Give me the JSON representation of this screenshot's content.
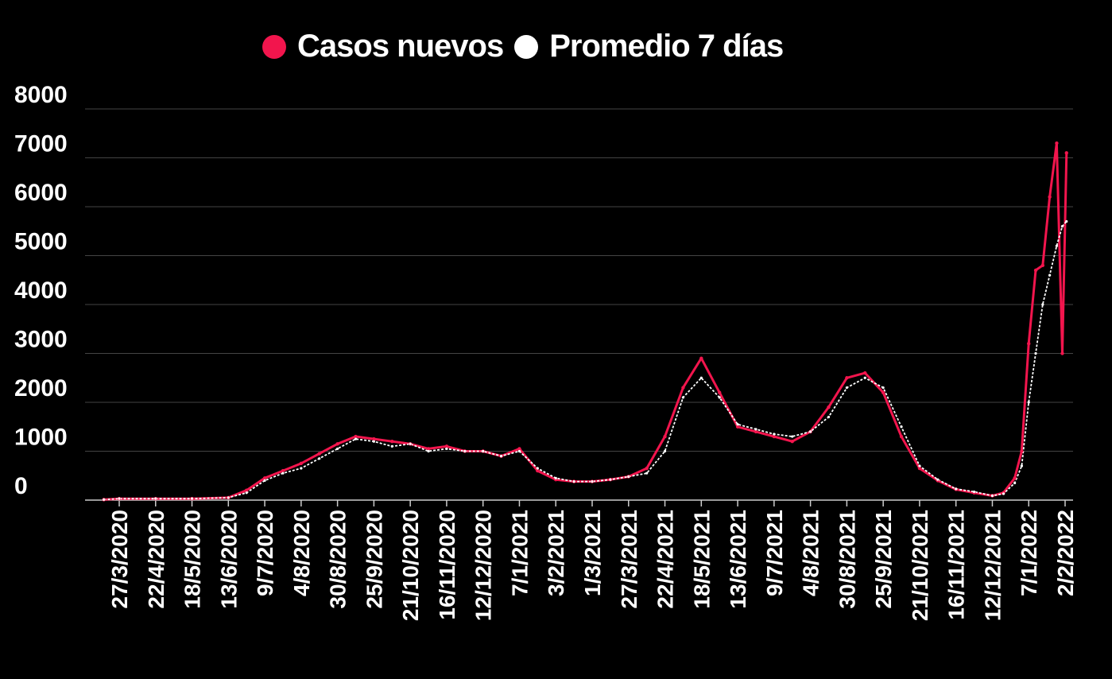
{
  "legend": {
    "series1_label": "Casos nuevos",
    "series2_label": "Promedio 7 días"
  },
  "colors": {
    "background": "#000000",
    "series1": "#f2154d",
    "series2": "#ffffff",
    "grid": "#444444",
    "axis": "#cccccc"
  },
  "chart_data": {
    "type": "line",
    "title": "",
    "xlabel": "",
    "ylabel": "",
    "ylim": [
      0,
      8000
    ],
    "y_ticks": [
      "0",
      "1000",
      "2000",
      "3000",
      "4000",
      "5000",
      "6000",
      "7000",
      "8000"
    ],
    "grid": "horizontal",
    "legend_position": "top-center",
    "x_ticks": [
      "27/3/2020",
      "22/4/2020",
      "18/5/2020",
      "13/6/2020",
      "9/7/2020",
      "4/8/2020",
      "30/8/2020",
      "25/9/2020",
      "21/10/2020",
      "16/11/2020",
      "12/12/2020",
      "7/1/2021",
      "3/2/2021",
      "1/3/2021",
      "27/3/2021",
      "22/4/2021",
      "18/5/2021",
      "13/6/2021",
      "9/7/2021",
      "4/8/2021",
      "30/8/2021",
      "25/9/2021",
      "21/10/2021",
      "16/11/2021",
      "12/12/2021",
      "7/1/2022",
      "2/2/2022"
    ],
    "tick_days": [
      0,
      26,
      52,
      78,
      104,
      130,
      156,
      182,
      208,
      234,
      260,
      286,
      312,
      338,
      364,
      390,
      416,
      442,
      468,
      494,
      520,
      546,
      572,
      598,
      624,
      650,
      676
    ],
    "x_range_days": [
      -11,
      677
    ],
    "series": [
      {
        "name": "Casos nuevos",
        "x_days": [
          -11,
          0,
          26,
          52,
          78,
          91,
          104,
          117,
          130,
          143,
          156,
          169,
          182,
          195,
          208,
          221,
          234,
          247,
          260,
          273,
          286,
          299,
          312,
          325,
          338,
          351,
          364,
          377,
          390,
          403,
          416,
          429,
          442,
          455,
          468,
          481,
          494,
          507,
          520,
          533,
          546,
          559,
          572,
          585,
          598,
          611,
          624,
          632,
          640,
          645,
          650,
          655,
          660,
          665,
          670,
          674,
          677
        ],
        "values": [
          10,
          30,
          30,
          30,
          50,
          200,
          450,
          600,
          750,
          950,
          1150,
          1300,
          1250,
          1200,
          1150,
          1050,
          1100,
          1000,
          1000,
          900,
          1050,
          600,
          420,
          380,
          380,
          420,
          480,
          650,
          1300,
          2300,
          2900,
          2200,
          1500,
          1400,
          1300,
          1200,
          1400,
          1900,
          2500,
          2600,
          2200,
          1300,
          650,
          400,
          220,
          150,
          90,
          150,
          450,
          1000,
          3200,
          4700,
          4800,
          6200,
          7300,
          3000,
          7100
        ]
      },
      {
        "name": "Promedio 7 días",
        "x_days": [
          -11,
          0,
          26,
          52,
          78,
          91,
          104,
          117,
          130,
          143,
          156,
          169,
          182,
          195,
          208,
          221,
          234,
          247,
          260,
          273,
          286,
          299,
          312,
          325,
          338,
          351,
          364,
          377,
          390,
          403,
          416,
          429,
          442,
          455,
          468,
          481,
          494,
          507,
          520,
          533,
          546,
          559,
          572,
          585,
          598,
          611,
          624,
          632,
          640,
          645,
          650,
          655,
          660,
          665,
          670,
          674,
          677
        ],
        "values": [
          10,
          30,
          30,
          30,
          50,
          150,
          400,
          550,
          650,
          850,
          1050,
          1250,
          1200,
          1100,
          1150,
          1000,
          1050,
          1000,
          1000,
          900,
          1000,
          650,
          450,
          380,
          380,
          420,
          480,
          550,
          1000,
          2100,
          2500,
          2100,
          1550,
          1450,
          1350,
          1300,
          1400,
          1700,
          2300,
          2500,
          2300,
          1500,
          700,
          420,
          230,
          170,
          90,
          130,
          350,
          700,
          2000,
          3000,
          4000,
          4600,
          5200,
          5600,
          5700
        ]
      }
    ]
  }
}
